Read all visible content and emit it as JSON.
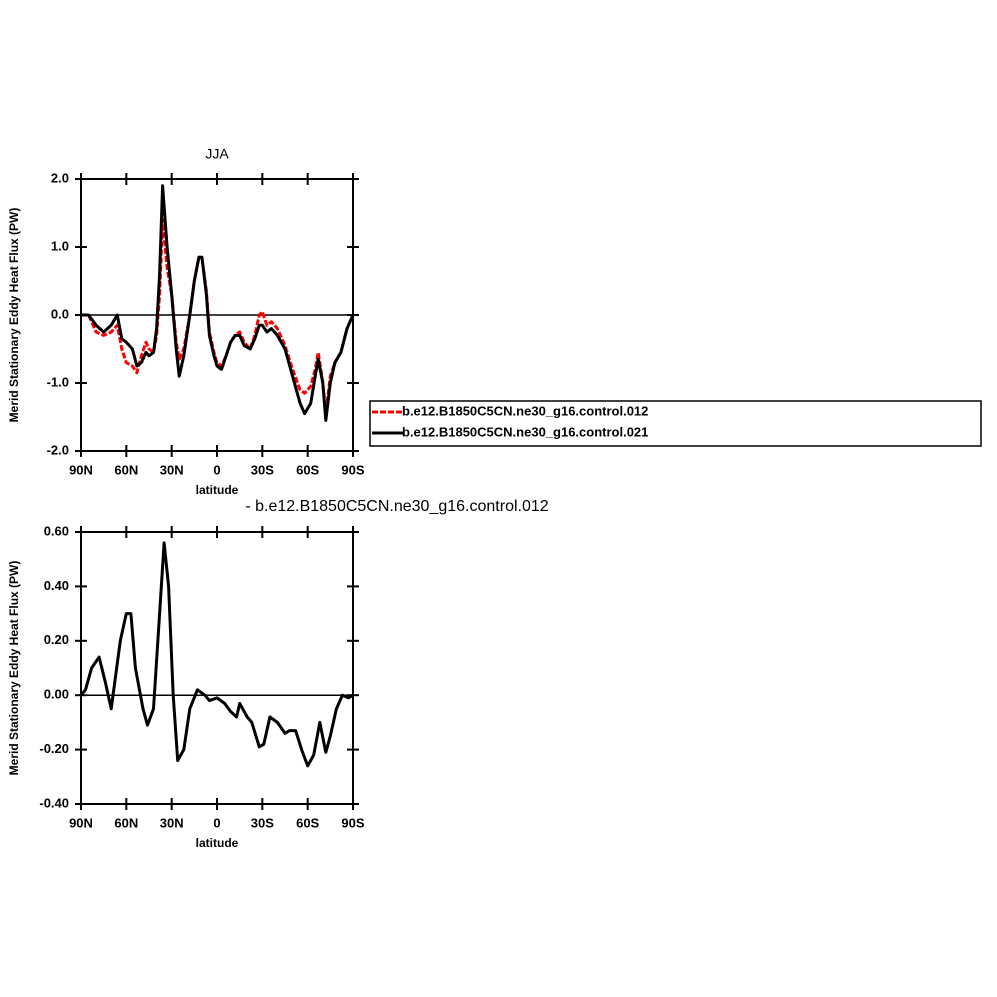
{
  "chart_data": [
    {
      "type": "line",
      "title": "JJA",
      "xlabel": "latitude",
      "ylabel": "Merid Stationary Eddy Heat Flux (PW)",
      "x": [
        90,
        85,
        80,
        75,
        70,
        66,
        63,
        60,
        56,
        53,
        50,
        47,
        45,
        42,
        40,
        38,
        36,
        33,
        30,
        27,
        25,
        22,
        18,
        15,
        12,
        10,
        7,
        5,
        2,
        0,
        -3,
        -6,
        -9,
        -12,
        -15,
        -18,
        -22,
        -25,
        -28,
        -30,
        -33,
        -36,
        -40,
        -45,
        -50,
        -55,
        -58,
        -62,
        -65,
        -67,
        -70,
        -72,
        -75,
        -78,
        -82,
        -86,
        -90
      ],
      "series": [
        {
          "name": "b.e12.B1850C5CN.ne30_g16.control.012",
          "color": "#ff0000",
          "dashed": true,
          "values": [
            0,
            0,
            -0.25,
            -0.3,
            -0.25,
            -0.15,
            -0.5,
            -0.7,
            -0.75,
            -0.85,
            -0.6,
            -0.4,
            -0.5,
            -0.55,
            -0.3,
            0.3,
            1.4,
            0.7,
            0.3,
            -0.4,
            -0.65,
            -0.5,
            0.0,
            0.5,
            0.85,
            0.85,
            0.35,
            -0.25,
            -0.55,
            -0.7,
            -0.75,
            -0.6,
            -0.4,
            -0.3,
            -0.25,
            -0.4,
            -0.5,
            -0.3,
            0.0,
            0.05,
            -0.15,
            -0.1,
            -0.2,
            -0.45,
            -0.8,
            -1.1,
            -1.15,
            -1.05,
            -0.8,
            -0.55,
            -1.0,
            -1.45,
            -0.9,
            -0.7,
            -0.55,
            -0.2,
            0.0
          ]
        },
        {
          "name": "b.e12.B1850C5CN.ne30_g16.control.021",
          "color": "#000000",
          "dashed": false,
          "values": [
            0,
            0,
            -0.15,
            -0.25,
            -0.15,
            0.0,
            -0.35,
            -0.4,
            -0.5,
            -0.75,
            -0.7,
            -0.55,
            -0.6,
            -0.55,
            -0.2,
            0.6,
            1.9,
            1.0,
            0.3,
            -0.5,
            -0.9,
            -0.6,
            0.0,
            0.5,
            0.85,
            0.85,
            0.3,
            -0.3,
            -0.6,
            -0.75,
            -0.8,
            -0.6,
            -0.4,
            -0.3,
            -0.3,
            -0.45,
            -0.5,
            -0.35,
            -0.15,
            -0.15,
            -0.25,
            -0.2,
            -0.3,
            -0.5,
            -0.9,
            -1.3,
            -1.45,
            -1.3,
            -0.9,
            -0.65,
            -1.0,
            -1.55,
            -1.0,
            -0.7,
            -0.55,
            -0.2,
            0.0
          ]
        }
      ],
      "xlim": [
        90,
        -90
      ],
      "xticks": [
        {
          "value": 90,
          "label": "90N"
        },
        {
          "value": 60,
          "label": "60N"
        },
        {
          "value": 30,
          "label": "30N"
        },
        0,
        {
          "value": -30,
          "label": "30S"
        },
        {
          "value": -60,
          "label": "60S"
        },
        {
          "value": -90,
          "label": "90S"
        }
      ],
      "ylim": [
        -2,
        2
      ],
      "yticks": [
        {
          "value": 2,
          "label": "2.0"
        },
        {
          "value": 1,
          "label": "1.0"
        },
        {
          "value": 0,
          "label": "0.0"
        },
        {
          "value": -1,
          "label": "-1.0"
        },
        {
          "value": -2,
          "label": "-2.0"
        }
      ],
      "zero_line": true,
      "legend": "right"
    },
    {
      "type": "line",
      "title": "- b.e12.B1850C5CN.ne30_g16.control.012",
      "xlabel": "latitude",
      "ylabel": "Merid Stationary Eddy Heat Flux (PW)",
      "x": [
        90,
        87,
        83,
        78,
        74,
        70,
        64,
        60,
        57,
        54,
        49,
        46,
        42,
        38,
        35,
        32,
        29,
        26,
        22,
        18,
        13,
        8,
        5,
        0,
        -5,
        -9,
        -13,
        -15,
        -20,
        -23,
        -28,
        -31,
        -35,
        -40,
        -45,
        -48,
        -52,
        -56,
        -60,
        -64,
        -68,
        -72,
        -75,
        -79,
        -83,
        -87,
        -90
      ],
      "series": [
        {
          "color": "#000000",
          "dashed": false,
          "values": [
            0.0,
            0.02,
            0.1,
            0.14,
            0.05,
            -0.05,
            0.2,
            0.3,
            0.3,
            0.1,
            -0.05,
            -0.11,
            -0.05,
            0.3,
            0.56,
            0.4,
            0.0,
            -0.24,
            -0.2,
            -0.05,
            0.02,
            0.0,
            -0.02,
            -0.01,
            -0.03,
            -0.06,
            -0.08,
            -0.03,
            -0.08,
            -0.1,
            -0.19,
            -0.18,
            -0.08,
            -0.1,
            -0.14,
            -0.13,
            -0.13,
            -0.2,
            -0.26,
            -0.22,
            -0.1,
            -0.21,
            -0.15,
            -0.05,
            0.0,
            -0.01,
            0.0
          ]
        }
      ],
      "xlim": [
        90,
        -90
      ],
      "xticks": [
        {
          "value": 90,
          "label": "90N"
        },
        {
          "value": 60,
          "label": "60N"
        },
        {
          "value": 30,
          "label": "30N"
        },
        0,
        {
          "value": -30,
          "label": "30S"
        },
        {
          "value": -60,
          "label": "60S"
        },
        {
          "value": -90,
          "label": "90S"
        }
      ],
      "ylim": [
        -0.4,
        0.6
      ],
      "yticks": [
        {
          "value": 0.6,
          "label": "0.60"
        },
        {
          "value": 0.4,
          "label": "0.40"
        },
        {
          "value": 0.2,
          "label": "0.20"
        },
        {
          "value": 0,
          "label": "0.00"
        },
        {
          "value": -0.2,
          "label": "-0.20"
        },
        {
          "value": -0.4,
          "label": "-0.40"
        }
      ],
      "zero_line": true
    }
  ]
}
